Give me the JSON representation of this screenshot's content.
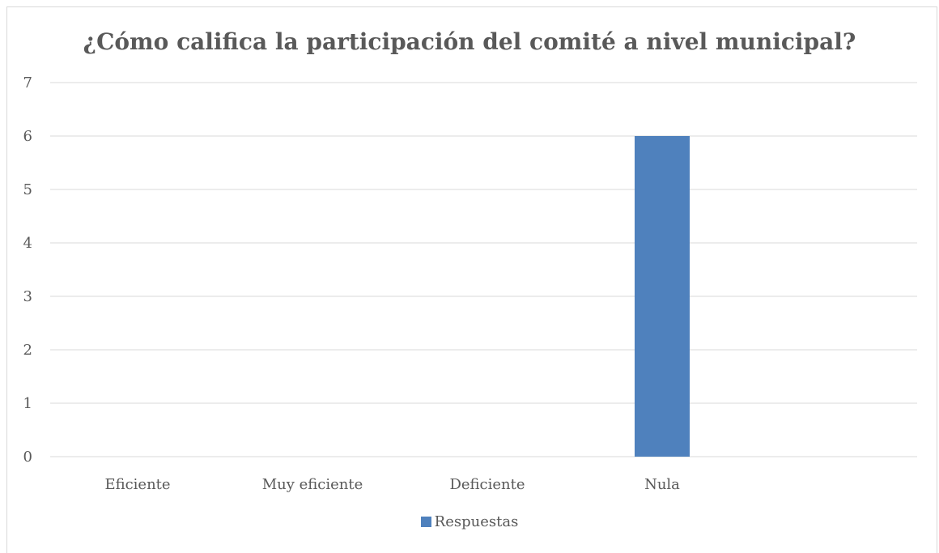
{
  "chart_data": {
    "type": "bar",
    "title": "¿Cómo califica la participación del comité a nivel municipal?",
    "categories": [
      "Eficiente",
      "Muy eficiente",
      "Deficiente",
      "Nula"
    ],
    "series": [
      {
        "name": "Respuestas",
        "values": [
          0,
          0,
          0,
          6
        ],
        "color": "#4f81bd"
      }
    ],
    "xlabel": "",
    "ylabel": "",
    "ylim": [
      0,
      7
    ],
    "yticks": [
      "0",
      "1",
      "2",
      "3",
      "4",
      "5",
      "6",
      "7"
    ],
    "grid": true,
    "legend_position": "bottom"
  }
}
